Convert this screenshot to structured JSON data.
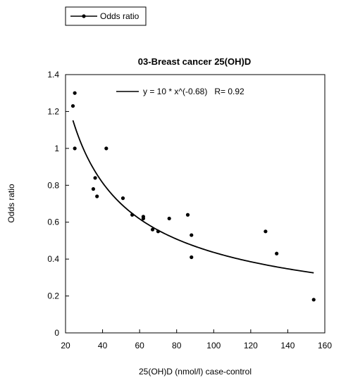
{
  "chart_data": {
    "type": "scatter",
    "title": "03-Breast cancer 25(OH)D",
    "xlabel": "25(OH)D (nmol/l) case-control",
    "ylabel": "Odds ratio",
    "xlim": [
      20,
      160
    ],
    "ylim": [
      0,
      1.4
    ],
    "xticks": [
      "20",
      "40",
      "60",
      "80",
      "100",
      "120",
      "140",
      "160"
    ],
    "yticks": [
      "0",
      "0.2",
      "0.4",
      "0.6",
      "0.8",
      "1",
      "1.2",
      "1.4"
    ],
    "grid": false,
    "legend": {
      "position": "top-left-outside",
      "entries": [
        "Odds ratio"
      ]
    },
    "series": [
      {
        "name": "Odds ratio",
        "points": [
          [
            24,
            1.23
          ],
          [
            25,
            1.3
          ],
          [
            25,
            1.0
          ],
          [
            35,
            0.78
          ],
          [
            36,
            0.84
          ],
          [
            37,
            0.74
          ],
          [
            42,
            1.0
          ],
          [
            51,
            0.73
          ],
          [
            56,
            0.64
          ],
          [
            62,
            0.62
          ],
          [
            62,
            0.63
          ],
          [
            67,
            0.56
          ],
          [
            70,
            0.55
          ],
          [
            76,
            0.62
          ],
          [
            86,
            0.64
          ],
          [
            88,
            0.53
          ],
          [
            88,
            0.41
          ],
          [
            128,
            0.55
          ],
          [
            134,
            0.43
          ],
          [
            154,
            0.18
          ]
        ]
      }
    ],
    "fit": {
      "label": "y = 10 * x^(-0.68)   R= 0.92",
      "coef": 10,
      "exponent": -0.68,
      "x_range": [
        24,
        154
      ]
    }
  }
}
